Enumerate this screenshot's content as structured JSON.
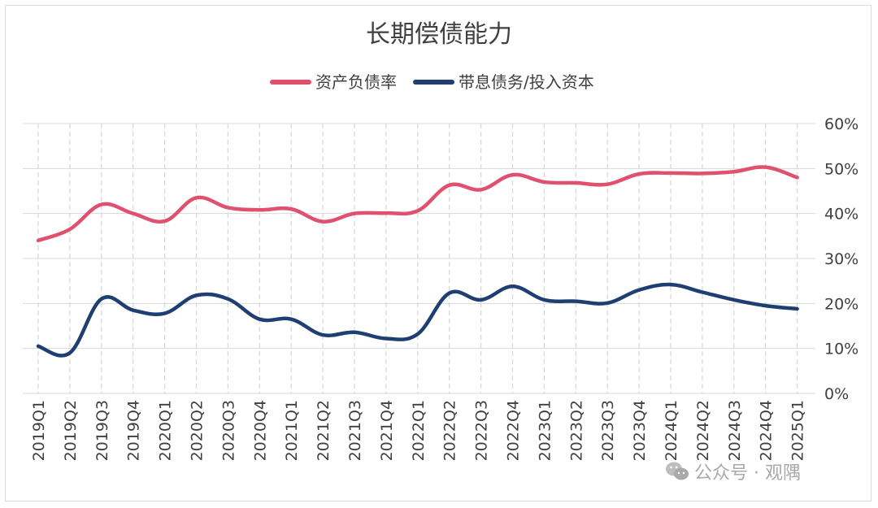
{
  "chart_data": {
    "type": "line",
    "title": "长期偿债能力",
    "legend_position": "top",
    "categories": [
      "2019Q1",
      "2019Q2",
      "2019Q3",
      "2019Q4",
      "2020Q1",
      "2020Q2",
      "2020Q3",
      "2020Q4",
      "2021Q1",
      "2021Q2",
      "2021Q3",
      "2021Q4",
      "2022Q1",
      "2022Q2",
      "2022Q3",
      "2022Q4",
      "2023Q1",
      "2023Q2",
      "2023Q3",
      "2023Q4",
      "2024Q1",
      "2024Q2",
      "2024Q3",
      "2024Q4",
      "2025Q1"
    ],
    "series": [
      {
        "name": "资产负债率",
        "color": "#e0506f",
        "values": [
          34,
          36.5,
          42,
          40,
          38.3,
          43.5,
          41.3,
          40.8,
          41,
          38.2,
          40,
          40.1,
          40.6,
          46.3,
          45.3,
          48.6,
          47,
          46.8,
          46.5,
          48.8,
          49,
          48.9,
          49.3,
          50.3,
          48
        ]
      },
      {
        "name": "带息债务/投入资本",
        "color": "#1f3f73",
        "values": [
          10.5,
          9,
          21,
          18.5,
          17.8,
          21.8,
          21,
          16.5,
          16.5,
          13,
          13.6,
          12.2,
          13.2,
          22.3,
          20.8,
          23.8,
          20.8,
          20.5,
          20.1,
          23,
          24.2,
          22.5,
          20.8,
          19.5,
          18.8
        ]
      }
    ],
    "ylim": [
      0,
      60
    ],
    "y_ticks": [
      "0%",
      "10%",
      "20%",
      "30%",
      "40%",
      "50%",
      "60%"
    ],
    "y_axis_position": "right",
    "grid": true
  },
  "watermark": {
    "text": "公众号 · 观隅",
    "icon": "wechat-icon"
  }
}
